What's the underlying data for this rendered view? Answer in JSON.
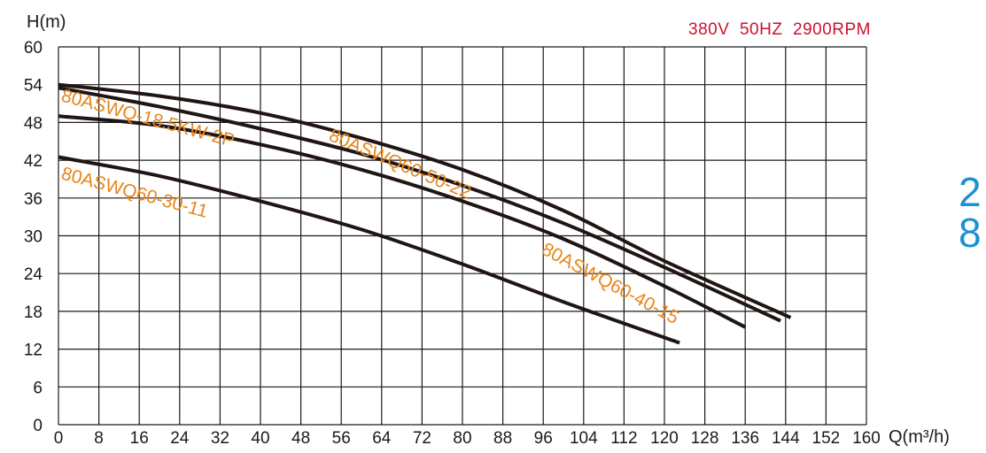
{
  "chart_data": {
    "type": "line",
    "ylabel": "H(m)",
    "xlabel": "Q(m³/h)",
    "spec": "380V  50HZ  2900RPM",
    "xlim": [
      0,
      160
    ],
    "ylim": [
      0,
      60
    ],
    "xticks": [
      "0",
      "8",
      "16",
      "24",
      "32",
      "40",
      "48",
      "56",
      "64",
      "72",
      "80",
      "88",
      "96",
      "104",
      "112",
      "120",
      "128",
      "136",
      "144",
      "152",
      "160"
    ],
    "yticks": [
      "0",
      "6",
      "12",
      "18",
      "24",
      "30",
      "36",
      "42",
      "48",
      "54",
      "60"
    ],
    "grid": true,
    "series": [
      {
        "name": "80ASWQ60-50-22",
        "x": [
          0,
          20,
          40,
          60,
          80,
          100,
          120,
          145
        ],
        "y": [
          54,
          52.2,
          49.5,
          45.5,
          40.5,
          34,
          26,
          17
        ]
      },
      {
        "name": "80ASWQ-18.5KW-2P",
        "x": [
          0,
          20,
          40,
          60,
          80,
          100,
          120,
          143
        ],
        "y": [
          53.5,
          50.5,
          47,
          43,
          38,
          32,
          25,
          16.5
        ]
      },
      {
        "name": "80ASWQ60-40-15",
        "x": [
          0,
          20,
          40,
          60,
          80,
          100,
          120,
          136
        ],
        "y": [
          49,
          47.5,
          44.5,
          40.5,
          35.5,
          29.5,
          22,
          15.5
        ]
      },
      {
        "name": "80ASWQ60-30-11",
        "x": [
          0,
          20,
          40,
          60,
          80,
          100,
          123
        ],
        "y": [
          42.5,
          39.5,
          35.5,
          31,
          25.5,
          19.5,
          13
        ]
      }
    ],
    "annotations": [
      "80ASWQ-18.5KW-2P",
      "80ASWQ60-50-22",
      "80ASWQ60-30-11",
      "80ASWQ60-40-15"
    ]
  },
  "side_digits": [
    "2",
    "8"
  ],
  "colors": {
    "curve": "#1f1512",
    "label": "#e8851a",
    "spec": "#d0102e",
    "side": "#1b8fd6",
    "grid": "#1a1a1a"
  }
}
